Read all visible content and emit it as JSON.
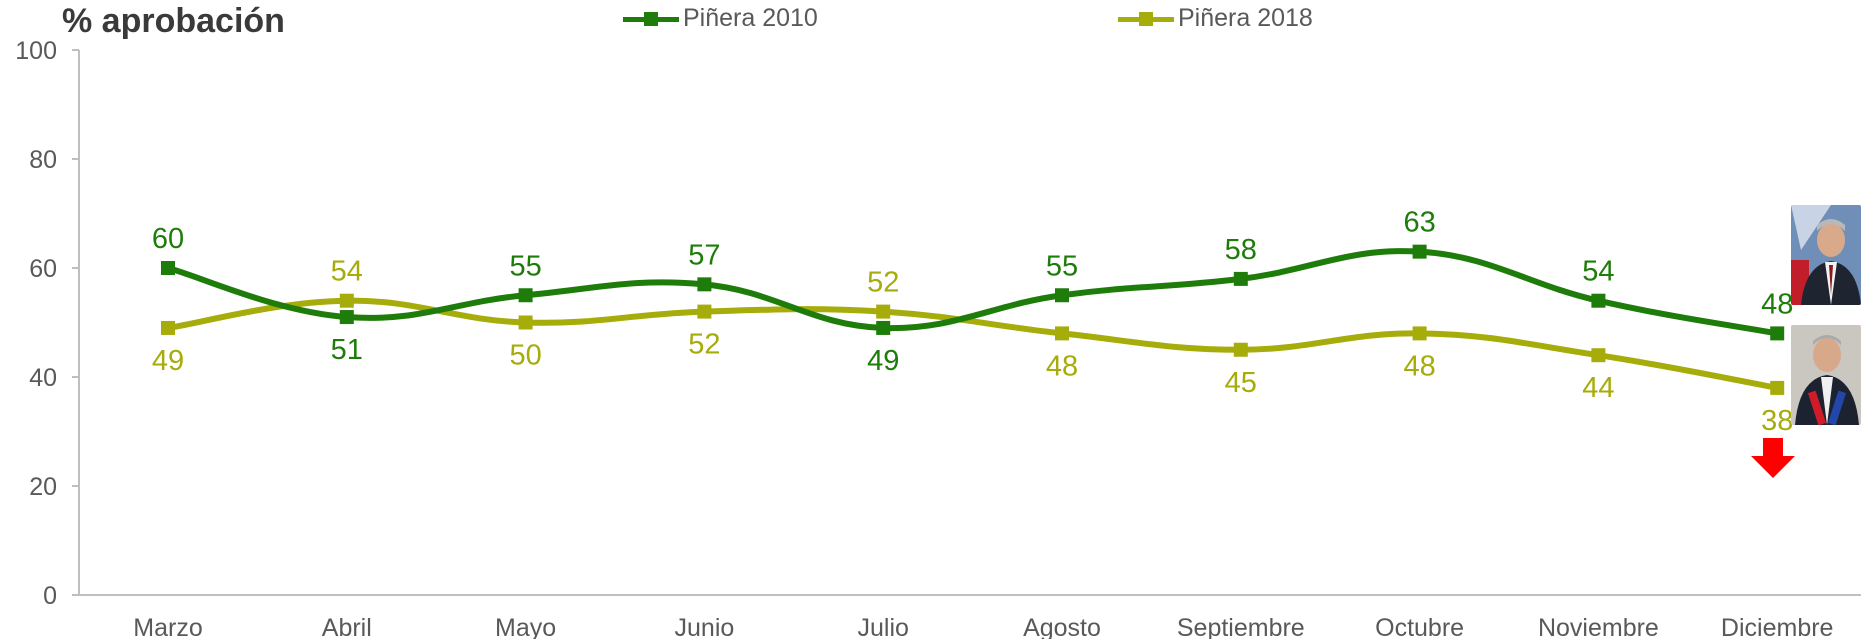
{
  "ylabel": "% aprobación",
  "legend": [
    {
      "label": "Piñera 2010",
      "color": "#1e7d0a"
    },
    {
      "label": "Piñera 2018",
      "color": "#a6ac0a"
    }
  ],
  "colors": {
    "series1": "#1e7d0a",
    "series2": "#a6ac0a",
    "arrow": "#ff0000",
    "axis": "#bfbfbf",
    "ticks": "#595959"
  },
  "chart_data": {
    "type": "line",
    "categories": [
      "Marzo",
      "Abril",
      "Mayo",
      "Junio",
      "Julio",
      "Agosto",
      "Septiembre",
      "Octubre",
      "Noviembre",
      "Diciembre"
    ],
    "ylim": [
      0,
      100
    ],
    "yticks": [
      "0",
      "20",
      "40",
      "60",
      "80",
      "100"
    ],
    "grid": false,
    "legend_position": "top",
    "series": [
      {
        "name": "Piñera 2010",
        "values": [
          60,
          51,
          55,
          57,
          49,
          55,
          58,
          63,
          54,
          48
        ],
        "labels": [
          "60",
          "51",
          "55",
          "57",
          "49",
          "55",
          "58",
          "63",
          "54",
          "48"
        ]
      },
      {
        "name": "Piñera 2018",
        "values": [
          49,
          54,
          50,
          52,
          52,
          48,
          45,
          48,
          44,
          38
        ],
        "labels": [
          "49",
          "54",
          "50",
          "52",
          "52",
          "48",
          "45",
          "48",
          "44",
          "38"
        ]
      }
    ],
    "annotations": [
      "down-arrow-icon",
      "portrait-2010",
      "portrait-2018"
    ]
  }
}
